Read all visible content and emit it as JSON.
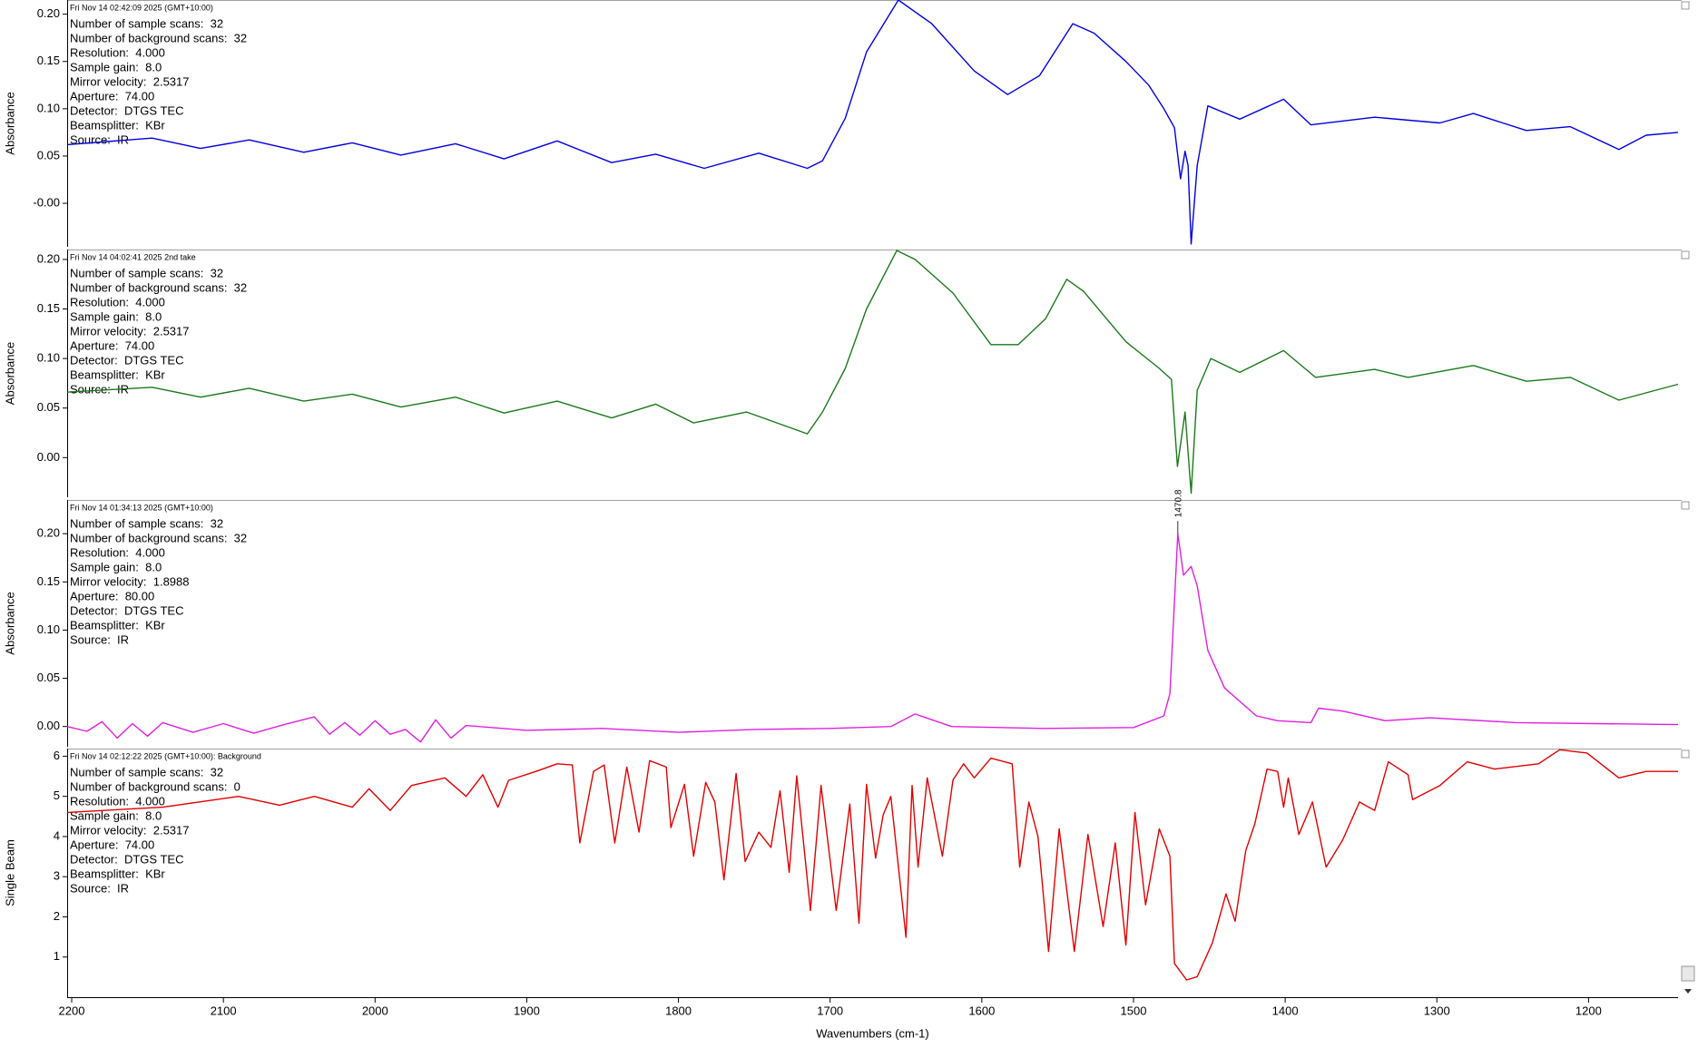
{
  "chart_data": [
    {
      "type": "line",
      "title": "Fri Nov 14 02:42:09 2025 (GMT+10:00)",
      "info": [
        "Number of sample scans:  32",
        "Number of background scans:  32",
        "Resolution:  4.000",
        "Sample gain:  8.0",
        "Mirror velocity:  2.5317",
        "Aperture:  74.00",
        "Detector:  DTGS TEC",
        "Beamsplitter:  KBr",
        "Source:  IR"
      ],
      "ylabel": "Absorbance",
      "color": "#0000e0",
      "xlim": [
        2203,
        1141
      ],
      "ylim": [
        -0.046,
        0.215
      ],
      "yticks": [
        {
          "value": 0.2,
          "label": "0.20"
        },
        {
          "value": 0.15,
          "label": "0.15"
        },
        {
          "value": 0.1,
          "label": "0.10"
        },
        {
          "value": 0.05,
          "label": "0.05"
        },
        {
          "value": 0,
          "label": "-0.00"
        }
      ],
      "x": [
        2203,
        2147,
        2115,
        2083,
        2047,
        2015,
        1983,
        1947,
        1915,
        1880,
        1844,
        1815,
        1783,
        1747,
        1715,
        1705,
        1690,
        1676,
        1655,
        1633,
        1605,
        1583,
        1562,
        1540,
        1526,
        1505,
        1490,
        1480,
        1473,
        1469,
        1466,
        1464,
        1462,
        1458,
        1451,
        1430,
        1401,
        1383,
        1341,
        1298,
        1276,
        1241,
        1212,
        1180,
        1162,
        1141
      ],
      "values": [
        0.062,
        0.069,
        0.058,
        0.067,
        0.054,
        0.064,
        0.051,
        0.063,
        0.047,
        0.066,
        0.043,
        0.052,
        0.037,
        0.053,
        0.037,
        0.045,
        0.09,
        0.16,
        0.215,
        0.19,
        0.14,
        0.115,
        0.135,
        0.19,
        0.18,
        0.15,
        0.125,
        0.1,
        0.08,
        0.026,
        0.055,
        0.04,
        -0.043,
        0.04,
        0.103,
        0.089,
        0.11,
        0.083,
        0.091,
        0.085,
        0.095,
        0.077,
        0.081,
        0.057,
        0.072,
        0.075
      ]
    },
    {
      "type": "line",
      "title": "Fri Nov 14 04:02:41 2025 2nd take",
      "info": [
        "Number of sample scans:  32",
        "Number of background scans:  32",
        "Resolution:  4.000",
        "Sample gain:  8.0",
        "Mirror velocity:  2.5317",
        "Aperture:  74.00",
        "Detector:  DTGS TEC",
        "Beamsplitter:  KBr",
        "Source:  IR"
      ],
      "ylabel": "Absorbance",
      "color": "#1a7a1a",
      "xlim": [
        2203,
        1141
      ],
      "ylim": [
        -0.04,
        0.21
      ],
      "yticks": [
        {
          "value": 0.2,
          "label": "0.20"
        },
        {
          "value": 0.15,
          "label": "0.15"
        },
        {
          "value": 0.1,
          "label": "0.10"
        },
        {
          "value": 0.05,
          "label": "0.05"
        },
        {
          "value": 0,
          "label": "0.00"
        }
      ],
      "x": [
        2203,
        2147,
        2115,
        2083,
        2047,
        2015,
        1983,
        1947,
        1915,
        1880,
        1844,
        1815,
        1790,
        1755,
        1715,
        1705,
        1690,
        1676,
        1656,
        1644,
        1619,
        1594,
        1576,
        1558,
        1544,
        1533,
        1505,
        1483,
        1475,
        1471,
        1466,
        1462,
        1458,
        1449,
        1430,
        1401,
        1380,
        1341,
        1319,
        1276,
        1241,
        1212,
        1180,
        1141
      ],
      "values": [
        0.066,
        0.071,
        0.061,
        0.07,
        0.057,
        0.064,
        0.051,
        0.061,
        0.045,
        0.057,
        0.04,
        0.054,
        0.035,
        0.046,
        0.024,
        0.046,
        0.09,
        0.15,
        0.209,
        0.2,
        0.166,
        0.114,
        0.114,
        0.14,
        0.18,
        0.168,
        0.117,
        0.09,
        0.079,
        -0.009,
        0.046,
        -0.036,
        0.068,
        0.1,
        0.086,
        0.108,
        0.081,
        0.089,
        0.081,
        0.093,
        0.077,
        0.081,
        0.058,
        0.074
      ]
    },
    {
      "type": "line",
      "title": "Fri Nov 14 01:34:13 2025 (GMT+10:00)",
      "info": [
        "Number of sample scans:  32",
        "Number of background scans:  32",
        "Resolution:  4.000",
        "Sample gain:  8.0",
        "Mirror velocity:  1.8988",
        "Aperture:  80.00",
        "Detector:  DTGS TEC",
        "Beamsplitter:  KBr",
        "Source:  IR"
      ],
      "ylabel": "Absorbance",
      "color": "#e020e0",
      "annotation_x": 1470.8,
      "xlim": [
        2203,
        1141
      ],
      "ylim": [
        -0.021,
        0.235
      ],
      "yticks": [
        {
          "value": 0.2,
          "label": "0.20"
        },
        {
          "value": 0.15,
          "label": "0.15"
        },
        {
          "value": 0.1,
          "label": "0.10"
        },
        {
          "value": 0.05,
          "label": "0.05"
        },
        {
          "value": 0,
          "label": "0.00"
        }
      ],
      "x": [
        2203,
        2190,
        2180,
        2170,
        2160,
        2150,
        2140,
        2120,
        2100,
        2080,
        2060,
        2040,
        2030,
        2020,
        2010,
        2000,
        1990,
        1980,
        1970,
        1960,
        1950,
        1940,
        1900,
        1850,
        1800,
        1750,
        1700,
        1660,
        1644,
        1620,
        1560,
        1500,
        1480,
        1476,
        1470.8,
        1467,
        1462,
        1458,
        1451,
        1440,
        1419,
        1405,
        1383,
        1378,
        1362,
        1334,
        1305,
        1248,
        1141
      ],
      "values": [
        0.0,
        -0.005,
        0.005,
        -0.012,
        0.003,
        -0.01,
        0.004,
        -0.006,
        0.003,
        -0.007,
        0.002,
        0.01,
        -0.008,
        0.004,
        -0.009,
        0.006,
        -0.008,
        -0.003,
        -0.016,
        0.007,
        -0.012,
        0.001,
        -0.004,
        -0.002,
        -0.006,
        -0.003,
        -0.002,
        0.0,
        0.013,
        0.0,
        -0.002,
        -0.001,
        0.011,
        0.034,
        0.2,
        0.157,
        0.166,
        0.146,
        0.079,
        0.04,
        0.011,
        0.006,
        0.004,
        0.019,
        0.016,
        0.006,
        0.009,
        0.004,
        0.002
      ]
    },
    {
      "type": "line",
      "title": "Fri Nov 14 02:12:22 2025 (GMT+10:00): Background",
      "info": [
        "Number of sample scans:  32",
        "Number of background scans:  0",
        "Resolution:  4.000",
        "Sample gain:  8.0",
        "Mirror velocity:  2.5317",
        "Aperture:  74.00",
        "Detector:  DTGS TEC",
        "Beamsplitter:  KBr",
        "Source:  IR"
      ],
      "ylabel": "Single Beam",
      "color": "#e00000",
      "xlabel": "Wavenumbers (cm-1)",
      "xlim": [
        2203,
        1141
      ],
      "ylim": [
        0,
        6.19
      ],
      "yticks": [
        6,
        5,
        4,
        3,
        2,
        1
      ],
      "xticks": [
        2200,
        2100,
        2000,
        1900,
        1800,
        1700,
        1600,
        1500,
        1400,
        1300,
        1200
      ],
      "x": [
        2203,
        2140,
        2090,
        2063,
        2040,
        2015,
        2004,
        1990,
        1976,
        1954,
        1940,
        1929,
        1919,
        1912,
        1894,
        1880,
        1870,
        1865,
        1856,
        1849,
        1842,
        1834,
        1826,
        1819,
        1808,
        1805,
        1796,
        1790,
        1782,
        1776,
        1770,
        1762,
        1756,
        1747,
        1739,
        1733,
        1727,
        1722,
        1713,
        1706,
        1696,
        1687,
        1681,
        1676,
        1670,
        1665,
        1660,
        1650,
        1646,
        1642,
        1636,
        1626,
        1619,
        1612,
        1605,
        1594,
        1580,
        1575,
        1569,
        1563,
        1556,
        1549,
        1539,
        1530,
        1520,
        1512,
        1505,
        1499,
        1492,
        1483,
        1476,
        1473,
        1465,
        1458,
        1448,
        1439,
        1433,
        1426,
        1420,
        1412,
        1405,
        1401,
        1398,
        1391,
        1382,
        1373,
        1362,
        1351,
        1341,
        1332,
        1319,
        1316,
        1298,
        1280,
        1262,
        1233,
        1219,
        1201,
        1180,
        1162,
        1141
      ],
      "values": [
        4.6,
        4.73,
        5.0,
        4.78,
        5.0,
        4.73,
        5.19,
        4.65,
        5.27,
        5.46,
        5.0,
        5.54,
        4.73,
        5.4,
        5.62,
        5.81,
        5.78,
        3.84,
        5.62,
        5.78,
        3.84,
        5.73,
        4.11,
        5.89,
        5.73,
        4.22,
        5.3,
        3.51,
        5.35,
        4.86,
        2.92,
        5.57,
        3.38,
        4.11,
        3.73,
        5.14,
        3.11,
        5.51,
        2.16,
        5.27,
        2.16,
        4.81,
        1.84,
        5.3,
        3.46,
        4.54,
        5.0,
        1.49,
        5.27,
        3.24,
        5.46,
        3.51,
        5.41,
        5.81,
        5.46,
        5.95,
        5.81,
        3.24,
        4.86,
        4.0,
        1.14,
        4.19,
        1.14,
        4.05,
        1.76,
        3.84,
        1.3,
        4.6,
        2.3,
        4.19,
        3.51,
        0.84,
        0.43,
        0.51,
        1.35,
        2.57,
        1.89,
        3.65,
        4.32,
        5.68,
        5.62,
        4.73,
        5.46,
        4.05,
        4.86,
        3.24,
        3.92,
        4.86,
        4.65,
        5.86,
        5.54,
        4.92,
        5.27,
        5.86,
        5.68,
        5.81,
        6.16,
        6.08,
        5.46,
        5.62,
        5.62
      ]
    }
  ]
}
